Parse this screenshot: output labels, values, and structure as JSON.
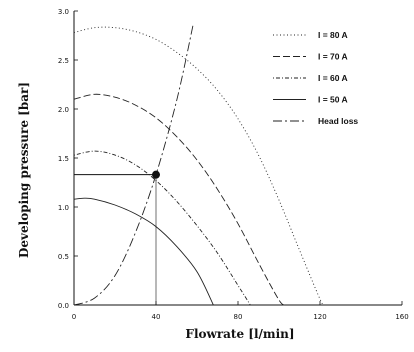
{
  "chart_data": {
    "type": "line",
    "xlabel": "Flowrate [l/min]",
    "ylabel": "Developing pressure [bar]",
    "xlim": [
      0,
      160
    ],
    "ylim": [
      0,
      3.0
    ],
    "x_ticks": [
      "0",
      "40",
      "80",
      "120",
      "160"
    ],
    "y_ticks": [
      "0.0",
      "0.5",
      "1.0",
      "1.5",
      "2.0",
      "2.5",
      "3.0"
    ],
    "legend_position": "top-right",
    "grid": false,
    "series": [
      {
        "name": "I = 80 A",
        "dash": "1,2.5",
        "x": [
          0,
          10,
          20,
          30,
          40,
          50,
          60,
          70,
          80,
          90,
          100,
          110,
          120,
          122
        ],
        "y": [
          2.78,
          2.83,
          2.83,
          2.79,
          2.71,
          2.58,
          2.41,
          2.19,
          1.9,
          1.53,
          1.07,
          0.56,
          0.06,
          0.0
        ]
      },
      {
        "name": "I = 70 A",
        "dash": "7,3",
        "x": [
          0,
          10,
          20,
          30,
          40,
          50,
          60,
          70,
          80,
          90,
          100,
          103
        ],
        "y": [
          2.1,
          2.15,
          2.12,
          2.04,
          1.91,
          1.72,
          1.48,
          1.18,
          0.83,
          0.43,
          0.05,
          0.0
        ]
      },
      {
        "name": "I = 60 A",
        "dash": "1,2,4,2",
        "x": [
          0,
          10,
          20,
          30,
          40,
          50,
          60,
          70,
          80,
          86
        ],
        "y": [
          1.53,
          1.57,
          1.53,
          1.43,
          1.27,
          1.06,
          0.81,
          0.53,
          0.2,
          0.0
        ]
      },
      {
        "name": "I = 50 A",
        "dash": "",
        "x": [
          0,
          5,
          10,
          20,
          30,
          40,
          50,
          60,
          68
        ],
        "y": [
          1.08,
          1.09,
          1.08,
          1.02,
          0.93,
          0.8,
          0.6,
          0.34,
          0.0
        ]
      },
      {
        "name": "Head loss",
        "dash": "9,3,2,3",
        "x": [
          0,
          10,
          20,
          30,
          40,
          50,
          58
        ],
        "y": [
          0.0,
          0.07,
          0.3,
          0.74,
          1.33,
          2.08,
          2.85
        ]
      }
    ],
    "operating_point": {
      "x": 40,
      "y": 1.33
    }
  }
}
